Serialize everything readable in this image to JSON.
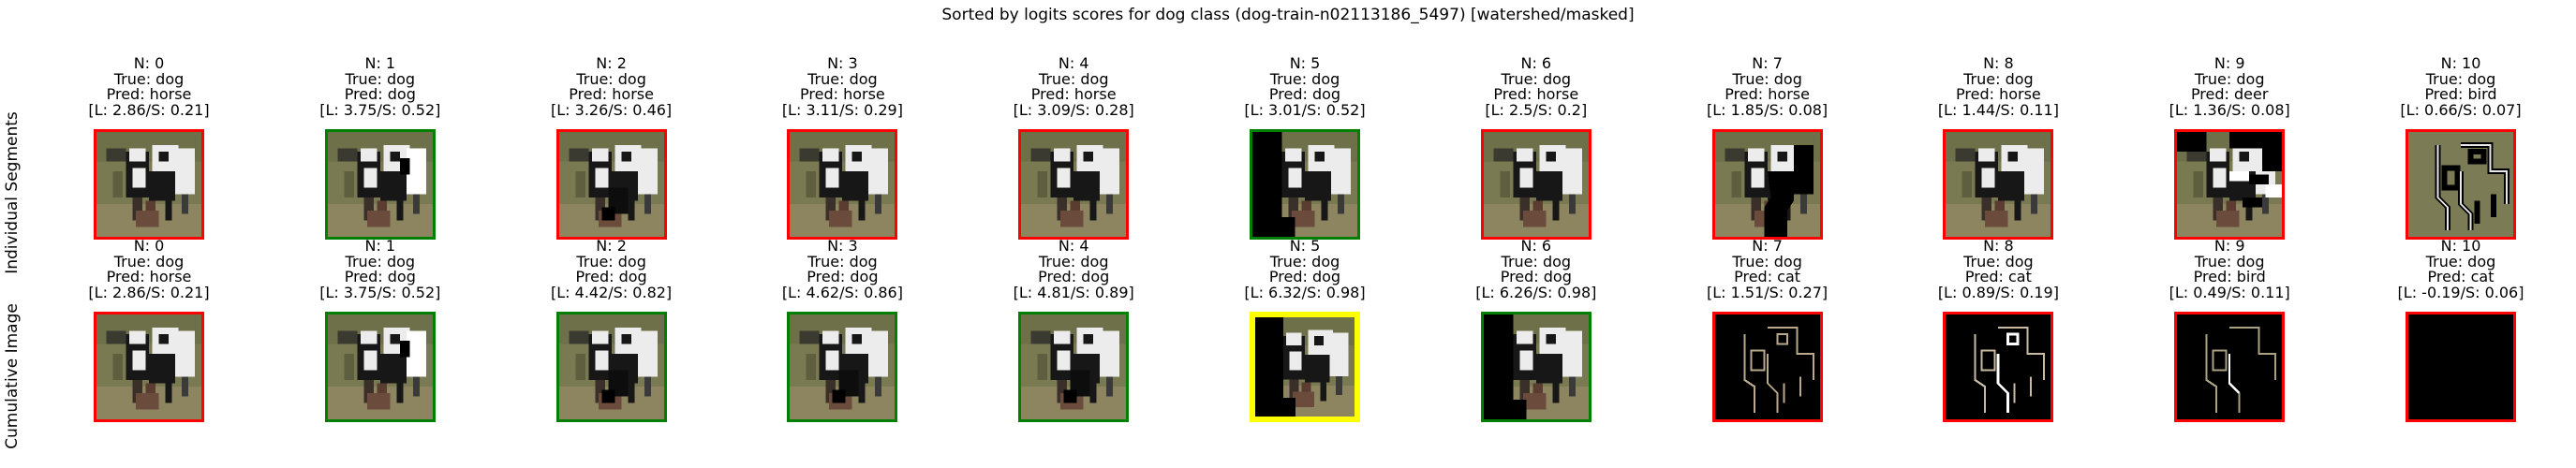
{
  "figure": {
    "title": "Sorted by logits scores for dog class (dog-train-n02113186_5497) [watershed/masked]",
    "row_labels": [
      "Individual Segments",
      "Cumulative Image"
    ],
    "colors": {
      "correct": "#008000",
      "incorrect": "#ff0000",
      "highlight": "#ffff00",
      "background": "#ffffff"
    }
  },
  "rows": [
    {
      "label": "Individual Segments",
      "panels": [
        {
          "n": "N: 0",
          "true": "True: dog",
          "pred": "Pred: horse",
          "score": "[L: 2.86/S: 0.21]",
          "border": "red",
          "image": "full"
        },
        {
          "n": "N: 1",
          "true": "True: dog",
          "pred": "Pred: dog",
          "score": "[L: 3.75/S: 0.52]",
          "border": "green",
          "image": "full-bright-horse"
        },
        {
          "n": "N: 2",
          "true": "True: dog",
          "pred": "Pred: horse",
          "score": "[L: 3.26/S: 0.46]",
          "border": "red",
          "image": "full-dark-legs"
        },
        {
          "n": "N: 3",
          "true": "True: dog",
          "pred": "Pred: horse",
          "score": "[L: 3.11/S: 0.29]",
          "border": "red",
          "image": "full"
        },
        {
          "n": "N: 4",
          "true": "True: dog",
          "pred": "Pred: horse",
          "score": "[L: 3.09/S: 0.28]",
          "border": "red",
          "image": "full"
        },
        {
          "n": "N: 5",
          "true": "True: dog",
          "pred": "Pred: dog",
          "score": "[L: 3.01/S: 0.52]",
          "border": "green",
          "image": "masked-left"
        },
        {
          "n": "N: 6",
          "true": "True: dog",
          "pred": "Pred: horse",
          "score": "[L: 2.5/S: 0.2]",
          "border": "red",
          "image": "full"
        },
        {
          "n": "N: 7",
          "true": "True: dog",
          "pred": "Pred: horse",
          "score": "[L: 1.85/S: 0.08]",
          "border": "red",
          "image": "masked-center"
        },
        {
          "n": "N: 8",
          "true": "True: dog",
          "pred": "Pred: horse",
          "score": "[L: 1.44/S: 0.11]",
          "border": "red",
          "image": "full"
        },
        {
          "n": "N: 9",
          "true": "True: dog",
          "pred": "Pred: deer",
          "score": "[L: 1.36/S: 0.08]",
          "border": "red",
          "image": "masked-blobs"
        },
        {
          "n": "N: 10",
          "true": "True: dog",
          "pred": "Pred: bird",
          "score": "[L: 0.66/S: 0.07]",
          "border": "red",
          "image": "outline-inverse"
        }
      ]
    },
    {
      "label": "Cumulative Image",
      "panels": [
        {
          "n": "N: 0",
          "true": "True: dog",
          "pred": "Pred: horse",
          "score": "[L: 2.86/S: 0.21]",
          "border": "red",
          "image": "full"
        },
        {
          "n": "N: 1",
          "true": "True: dog",
          "pred": "Pred: dog",
          "score": "[L: 3.75/S: 0.52]",
          "border": "green",
          "image": "full-bright-horse"
        },
        {
          "n": "N: 2",
          "true": "True: dog",
          "pred": "Pred: dog",
          "score": "[L: 4.42/S: 0.82]",
          "border": "green",
          "image": "full-dark-legs"
        },
        {
          "n": "N: 3",
          "true": "True: dog",
          "pred": "Pred: dog",
          "score": "[L: 4.62/S: 0.86]",
          "border": "green",
          "image": "full-dark-legs"
        },
        {
          "n": "N: 4",
          "true": "True: dog",
          "pred": "Pred: dog",
          "score": "[L: 4.81/S: 0.89]",
          "border": "green",
          "image": "full-dark-legs"
        },
        {
          "n": "N: 5",
          "true": "True: dog",
          "pred": "Pred: dog",
          "score": "[L: 6.32/S: 0.98]",
          "border": "yellow",
          "image": "masked-left"
        },
        {
          "n": "N: 6",
          "true": "True: dog",
          "pred": "Pred: dog",
          "score": "[L: 6.26/S: 0.98]",
          "border": "green",
          "image": "masked-left"
        },
        {
          "n": "N: 7",
          "true": "True: dog",
          "pred": "Pred: cat",
          "score": "[L: 1.51/S: 0.27]",
          "border": "red",
          "image": "outline"
        },
        {
          "n": "N: 8",
          "true": "True: dog",
          "pred": "Pred: cat",
          "score": "[L: 0.89/S: 0.19]",
          "border": "red",
          "image": "outline-white"
        },
        {
          "n": "N: 9",
          "true": "True: dog",
          "pred": "Pred: bird",
          "score": "[L: 0.49/S: 0.11]",
          "border": "red",
          "image": "outline-sparse"
        },
        {
          "n": "N: 10",
          "true": "True: dog",
          "pred": "Pred: cat",
          "score": "[L: -0.19/S: 0.06]",
          "border": "red",
          "image": "black"
        }
      ]
    }
  ]
}
